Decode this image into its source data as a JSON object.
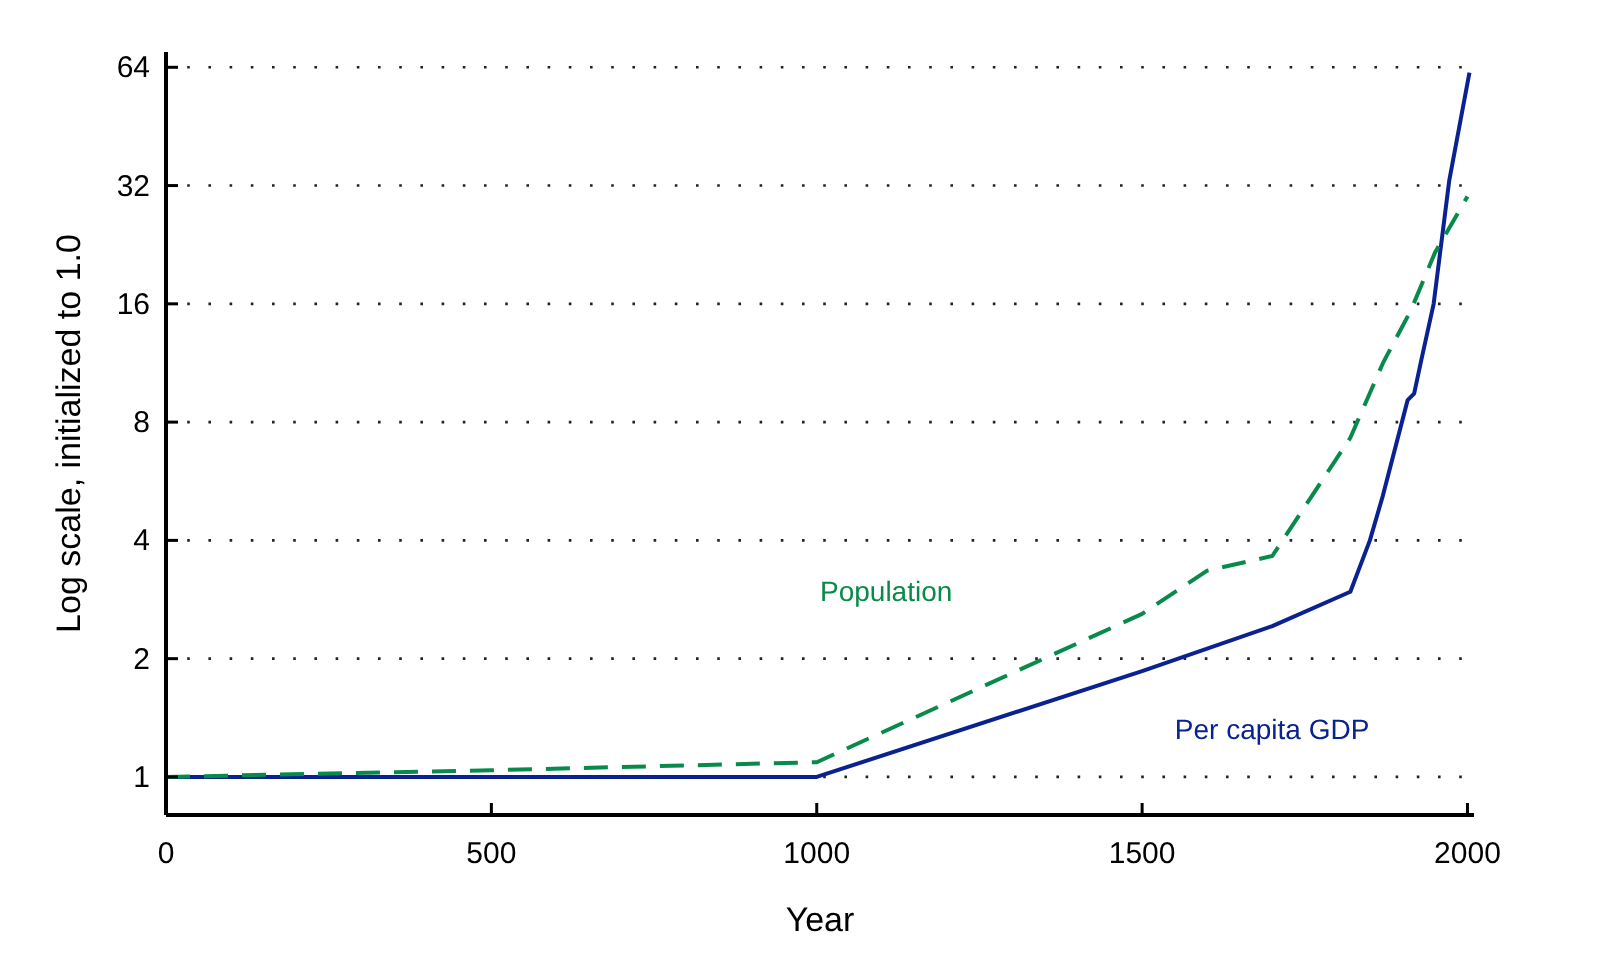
{
  "chart_data": {
    "type": "line",
    "xlabel": "Year",
    "ylabel": "Log scale, initialized to 1.0",
    "log": "y",
    "grid": "y",
    "marker": "none",
    "xlim": [
      0,
      2010
    ],
    "xticks": [
      0,
      500,
      1000,
      1500,
      2000
    ],
    "ylim": [
      0.8,
      70
    ],
    "yticks": [
      1,
      2,
      4,
      8,
      16,
      32,
      64
    ],
    "series": [
      {
        "name": "Per capita GDP",
        "color": "#0a2291",
        "line_style": "solid",
        "x": [
          0,
          1000,
          1500,
          1700,
          1820,
          1850,
          1870,
          1908,
          1918,
          1929,
          1948,
          1972,
          2003
        ],
        "values": [
          1,
          1,
          1.86,
          2.42,
          2.96,
          4.0,
          5.2,
          9.1,
          9.45,
          11.5,
          16,
          33,
          62
        ]
      },
      {
        "name": "Population",
        "color": "#078a4a",
        "line_style": "dashed",
        "x": [
          0,
          500,
          1000,
          1500,
          1600,
          1700,
          1820,
          1870,
          1913,
          1950,
          2000
        ],
        "values": [
          1,
          1.04,
          1.09,
          2.6,
          3.35,
          3.65,
          7.3,
          11.3,
          15.4,
          21.6,
          30
        ]
      }
    ]
  }
}
